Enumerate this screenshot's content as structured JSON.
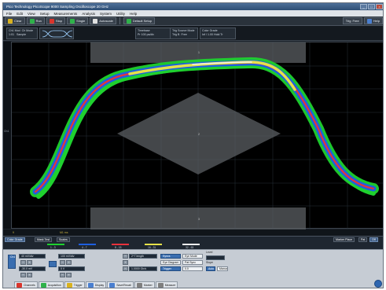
{
  "window": {
    "title": "Pico Technology   PicoScope 9000   Sampling Oscilloscope 20 GHz",
    "buttons": [
      "_",
      "□",
      "×"
    ]
  },
  "menu": [
    "File",
    "Edit",
    "View",
    "Setup",
    "Measurements",
    "Analysis",
    "System",
    "Utility",
    "Help"
  ],
  "toolbar": {
    "clear": "Clear",
    "run": "Run",
    "stop": "Stop",
    "single": "Single",
    "autoscale": "Autoscale",
    "default_setup": "Default Setup",
    "trigger_label": "Trig",
    "trigger_value": "Free",
    "help": "Help",
    "colors": {
      "clear": "#d9b21f",
      "run": "#2fb24a",
      "stop": "#d9352c",
      "single": "#2fb24a",
      "auto": "#e0e0e0",
      "default": "#2fb24a"
    }
  },
  "info": {
    "ch_mode": "Ch1 Mod",
    "ch_mode_val": "1:01",
    "ch_mode2": "Ch Mode",
    "ch_mode2_val": "Sample",
    "pattern": "Pattern",
    "pattern_val": "2^7-1",
    "timebase": "Timebase",
    "timebase_val": "Pr 100 ps/div",
    "trig_source": "Trig Source",
    "trig_source_val": "Trig B",
    "trig_mode": "Mode",
    "trig_mode_val": "Free",
    "color_grade": "Color Grade",
    "color_grade_val": "Inf / 1.00 Hold Tr"
  },
  "axis": {
    "left_label": "Ch1"
  },
  "status": {
    "marker": "9",
    "readout": "M1 ms"
  },
  "legend": {
    "tabs": [
      "Color Grade",
      "Mask Test",
      "Scales"
    ],
    "right_tabs": [
      "Marker Place",
      "Pat",
      "Off"
    ],
    "entries": [
      {
        "label": "1 - 3",
        "color": "#1fd12f"
      },
      {
        "label": "4 - 7",
        "color": "#1d5fe0"
      },
      {
        "label": "8 - 15",
        "color": "#e8323c"
      },
      {
        "label": "16 - 31",
        "color": "#e6e14a"
      },
      {
        "label": "32 - 63",
        "color": "#f0f0f0"
      }
    ]
  },
  "controls": {
    "ch1_label": "Ch1",
    "scale": "40 mV/div",
    "offset": "-30.0 mV",
    "pos": "100 mV/div",
    "pos2": "0 V",
    "pattern_length": "2^7 length",
    "bit_rate": "1.0000 Gb/s",
    "sync": "Syncs",
    "eye_mode": "Eye Mode",
    "eye_diagram": "Eye Diagram",
    "pat_sync": "Pat Sync",
    "trigger": "Trigger",
    "trigger_val": "0.0",
    "auto": "Auto",
    "manual": "Manual",
    "level": "Level",
    "slope": "Slope"
  },
  "bottom_nav": [
    {
      "label": "Channels",
      "color": "#d9352c"
    },
    {
      "label": "Acquisition",
      "color": "#2fb24a"
    },
    {
      "label": "Trigger",
      "color": "#d9b21f"
    },
    {
      "label": "Display",
      "color": "#4a7fd0"
    },
    {
      "label": "Save/Recall",
      "color": "#4a7fd0"
    },
    {
      "label": "Marker",
      "color": "#7f7f7f"
    },
    {
      "label": "Measure",
      "color": "#7f7f7f"
    },
    {
      "label": "Mathematics",
      "color": "#4a7fd0"
    },
    {
      "label": "Histogram",
      "color": "#e07b23"
    },
    {
      "label": "Eye Diagram",
      "color": "#4a7fd0"
    },
    {
      "label": "Mask Test",
      "color": "#4a7fd0"
    },
    {
      "label": "Spectrum",
      "color": "#4a7fd0"
    },
    {
      "label": "Utility",
      "color": "#7f7f7f"
    }
  ],
  "mask": {
    "labels": [
      "1",
      "2",
      "3"
    ]
  }
}
